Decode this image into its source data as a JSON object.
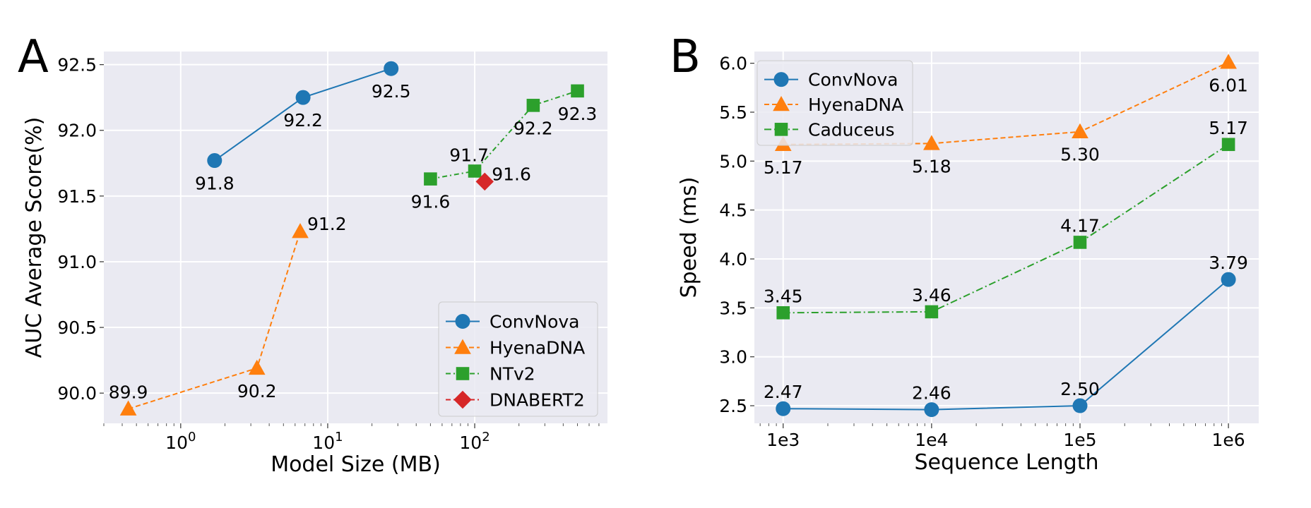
{
  "chart_data": [
    {
      "panel": "A",
      "type": "line",
      "x_scale": "log",
      "xlabel": "Model Size (MB)",
      "ylabel": "AUC Average Score(%)",
      "xlim": [
        0.3,
        800
      ],
      "ylim": [
        89.77,
        92.6
      ],
      "x_ticks": [
        {
          "value": 1,
          "base": "10",
          "exp": "0"
        },
        {
          "value": 10,
          "base": "10",
          "exp": "1"
        },
        {
          "value": 100,
          "base": "10",
          "exp": "2"
        }
      ],
      "y_ticks": [
        {
          "value": 90.0,
          "label": "90.0"
        },
        {
          "value": 90.5,
          "label": "90.5"
        },
        {
          "value": 91.0,
          "label": "91.0"
        },
        {
          "value": 91.5,
          "label": "91.5"
        },
        {
          "value": 92.0,
          "label": "92.0"
        },
        {
          "value": 92.5,
          "label": "92.5"
        }
      ],
      "legend_position": "lower-right",
      "series": [
        {
          "name": "ConvNova",
          "color": "#1f77b4",
          "marker": "circle",
          "dash": "",
          "points": [
            {
              "x": 1.7,
              "y": 91.77,
              "label": "91.8",
              "pos": "below"
            },
            {
              "x": 6.8,
              "y": 92.25,
              "label": "92.2",
              "pos": "below"
            },
            {
              "x": 27,
              "y": 92.47,
              "label": "92.5",
              "pos": "below"
            }
          ]
        },
        {
          "name": "HyenaDNA",
          "color": "#ff7f0e",
          "marker": "triangle",
          "dash": "7,4",
          "points": [
            {
              "x": 0.44,
              "y": 89.88,
              "label": "89.9",
              "pos": "above"
            },
            {
              "x": 3.3,
              "y": 90.19,
              "label": "90.2",
              "pos": "below"
            },
            {
              "x": 6.5,
              "y": 91.23,
              "label": "91.2",
              "pos": "right"
            }
          ]
        },
        {
          "name": "NTv2",
          "color": "#2ca02c",
          "marker": "square",
          "dash": "7,4,2,4",
          "points": [
            {
              "x": 50,
              "y": 91.63,
              "label": "91.6",
              "pos": "below"
            },
            {
              "x": 100,
              "y": 91.69,
              "label": "91.7",
              "pos": "upper-left"
            },
            {
              "x": 250,
              "y": 92.19,
              "label": "92.2",
              "pos": "below"
            },
            {
              "x": 500,
              "y": 92.3,
              "label": "92.3",
              "pos": "below"
            }
          ]
        },
        {
          "name": "DNABERT2",
          "color": "#d62728",
          "marker": "diamond",
          "dash": "7,4,2,4",
          "points": [
            {
              "x": 117,
              "y": 91.61,
              "label": "91.6",
              "pos": "upper-right"
            }
          ]
        }
      ]
    },
    {
      "panel": "B",
      "type": "line",
      "x_scale": "log",
      "xlabel": "Sequence Length",
      "ylabel": "Speed (ms)",
      "xlim": [
        640,
        1600000
      ],
      "ylim": [
        2.32,
        6.12
      ],
      "x_ticks": [
        {
          "value": 1000,
          "label": "1e3"
        },
        {
          "value": 10000,
          "label": "1e4"
        },
        {
          "value": 100000,
          "label": "1e5"
        },
        {
          "value": 1000000,
          "label": "1e6"
        }
      ],
      "y_ticks": [
        {
          "value": 2.5,
          "label": "2.5"
        },
        {
          "value": 3.0,
          "label": "3.0"
        },
        {
          "value": 3.5,
          "label": "3.5"
        },
        {
          "value": 4.0,
          "label": "4.0"
        },
        {
          "value": 4.5,
          "label": "4.5"
        },
        {
          "value": 5.0,
          "label": "5.0"
        },
        {
          "value": 5.5,
          "label": "5.5"
        },
        {
          "value": 6.0,
          "label": "6.0"
        }
      ],
      "legend_position": "top-left",
      "series": [
        {
          "name": "ConvNova",
          "color": "#1f77b4",
          "marker": "circle",
          "dash": "",
          "points": [
            {
              "x": 1000,
              "y": 2.47,
              "label": "2.47",
              "pos": "above"
            },
            {
              "x": 10000,
              "y": 2.46,
              "label": "2.46",
              "pos": "above"
            },
            {
              "x": 100000,
              "y": 2.5,
              "label": "2.50",
              "pos": "above"
            },
            {
              "x": 1000000,
              "y": 3.79,
              "label": "3.79",
              "pos": "above"
            }
          ]
        },
        {
          "name": "HyenaDNA",
          "color": "#ff7f0e",
          "marker": "triangle",
          "dash": "7,4",
          "points": [
            {
              "x": 1000,
              "y": 5.17,
              "label": "5.17",
              "pos": "below"
            },
            {
              "x": 10000,
              "y": 5.18,
              "label": "5.18",
              "pos": "below"
            },
            {
              "x": 100000,
              "y": 5.3,
              "label": "5.30",
              "pos": "below"
            },
            {
              "x": 1000000,
              "y": 6.01,
              "label": "6.01",
              "pos": "below"
            }
          ]
        },
        {
          "name": "Caduceus",
          "color": "#2ca02c",
          "marker": "square",
          "dash": "10,4,2,4",
          "points": [
            {
              "x": 1000,
              "y": 3.45,
              "label": "3.45",
              "pos": "above"
            },
            {
              "x": 10000,
              "y": 3.46,
              "label": "3.46",
              "pos": "above"
            },
            {
              "x": 100000,
              "y": 4.17,
              "label": "4.17",
              "pos": "above"
            },
            {
              "x": 1000000,
              "y": 5.17,
              "label": "5.17",
              "pos": "above"
            }
          ]
        }
      ]
    }
  ]
}
